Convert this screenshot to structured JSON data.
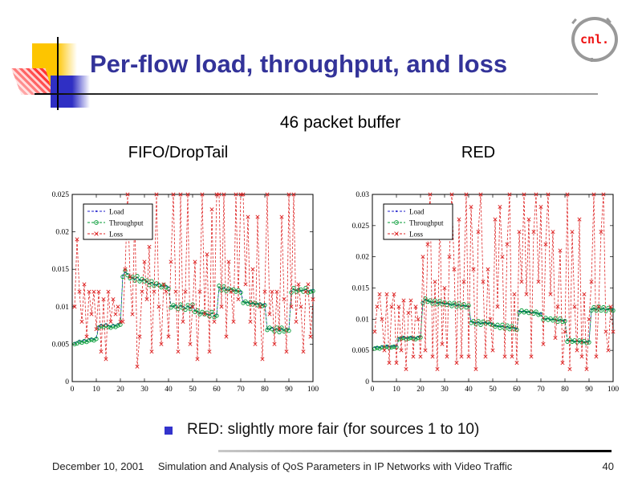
{
  "slide": {
    "title": "Per-flow load, throughput, and loss",
    "subtitle": "46 packet buffer",
    "bullet_text": "RED: slightly more fair (for sources 1 to 10)",
    "footer_date": "December 10, 2001",
    "footer_title": "Simulation and Analysis of QoS Parameters in IP Networks with Video Traffic",
    "page_number": "40",
    "logo_text": "cnl."
  },
  "colors": {
    "title": "#333399",
    "bullet_marker": "#3333cc",
    "logo_text": "#ee1111",
    "load": "#2222cc",
    "throughput": "#009933",
    "loss": "#dd2222"
  },
  "chart_data": [
    {
      "type": "line",
      "title": "FIFO/DropTail",
      "xlabel": "",
      "ylabel": "",
      "xlim": [
        0,
        100
      ],
      "ylim": [
        0,
        0.025
      ],
      "x_start": 1,
      "x_step": 1,
      "grid": false,
      "legend_position": "top-left",
      "xtick_values": [
        0,
        10,
        20,
        30,
        40,
        50,
        60,
        70,
        80,
        90,
        100
      ],
      "xtick_labels": [
        "0",
        "10",
        "20",
        "30",
        "40",
        "50",
        "60",
        "70",
        "80",
        "90",
        "100"
      ],
      "ytick_values": [
        0,
        0.005,
        0.01,
        0.015,
        0.02,
        0.025
      ],
      "ytick_labels": [
        "0",
        "0.005",
        "0.01",
        "0.015",
        "0.02",
        "0.025"
      ],
      "series": [
        {
          "name": "Load",
          "color": "#2222cc",
          "marker": "dot",
          "values": [
            0.0052,
            0.0053,
            0.0055,
            0.0054,
            0.0056,
            0.0055,
            0.0057,
            0.0058,
            0.0057,
            0.0059,
            0.0074,
            0.0076,
            0.0075,
            0.0077,
            0.0075,
            0.0074,
            0.0076,
            0.0075,
            0.0077,
            0.0078,
            0.0142,
            0.0146,
            0.0144,
            0.014,
            0.0138,
            0.0137,
            0.0139,
            0.0136,
            0.0135,
            0.0136,
            0.0133,
            0.0131,
            0.0132,
            0.013,
            0.0129,
            0.0131,
            0.0128,
            0.0127,
            0.0128,
            0.0126,
            0.0101,
            0.01,
            0.0102,
            0.0099,
            0.0101,
            0.01,
            0.0098,
            0.01,
            0.0099,
            0.0101,
            0.0095,
            0.0093,
            0.0092,
            0.0091,
            0.0092,
            0.009,
            0.0089,
            0.0091,
            0.0088,
            0.009,
            0.0126,
            0.0124,
            0.0125,
            0.0123,
            0.0122,
            0.0124,
            0.0121,
            0.0122,
            0.012,
            0.0121,
            0.0107,
            0.0105,
            0.0106,
            0.0104,
            0.0105,
            0.0103,
            0.0104,
            0.0105,
            0.0103,
            0.0104,
            0.0071,
            0.007,
            0.0072,
            0.0069,
            0.007,
            0.0068,
            0.007,
            0.0069,
            0.0071,
            0.007,
            0.0121,
            0.0123,
            0.0122,
            0.0124,
            0.0121,
            0.0122,
            0.0123,
            0.0121,
            0.0122,
            0.0123
          ]
        },
        {
          "name": "Throughput",
          "color": "#009933",
          "marker": "circle",
          "values": [
            0.005,
            0.0051,
            0.0053,
            0.0052,
            0.0054,
            0.0053,
            0.0055,
            0.0056,
            0.0055,
            0.0057,
            0.0072,
            0.0074,
            0.0073,
            0.0075,
            0.0073,
            0.0072,
            0.0074,
            0.0073,
            0.0075,
            0.0076,
            0.014,
            0.0148,
            0.0142,
            0.0138,
            0.014,
            0.0135,
            0.0141,
            0.0134,
            0.0137,
            0.0134,
            0.0135,
            0.0129,
            0.0134,
            0.0128,
            0.0131,
            0.0129,
            0.0126,
            0.0129,
            0.0126,
            0.0124,
            0.0099,
            0.0102,
            0.01,
            0.0097,
            0.0103,
            0.0098,
            0.0096,
            0.0102,
            0.0097,
            0.0103,
            0.0093,
            0.0095,
            0.009,
            0.0093,
            0.009,
            0.0092,
            0.0087,
            0.0093,
            0.0086,
            0.0088,
            0.0128,
            0.0122,
            0.0127,
            0.0121,
            0.0124,
            0.0122,
            0.0123,
            0.012,
            0.0122,
            0.0119,
            0.0105,
            0.0107,
            0.0104,
            0.0106,
            0.0103,
            0.0105,
            0.0102,
            0.0103,
            0.0101,
            0.0102,
            0.0069,
            0.0072,
            0.007,
            0.0067,
            0.0072,
            0.0066,
            0.0072,
            0.0067,
            0.0069,
            0.0068,
            0.0119,
            0.0125,
            0.012,
            0.0122,
            0.0123,
            0.012,
            0.0125,
            0.0119,
            0.012,
            0.0121
          ]
        },
        {
          "name": "Loss",
          "color": "#dd2222",
          "marker": "x",
          "values": [
            0.01,
            0.019,
            0.012,
            0.008,
            0.013,
            0.006,
            0.012,
            0.009,
            0.012,
            0.007,
            0.012,
            0.004,
            0.011,
            0.003,
            0.012,
            0.008,
            0.011,
            0.009,
            0.01,
            0.008,
            0.008,
            0.015,
            0.025,
            0.014,
            0.009,
            0.023,
            0.002,
            0.006,
            0.012,
            0.016,
            0.011,
            0.018,
            0.004,
            0.012,
            0.025,
            0.01,
            0.005,
            0.013,
            0.012,
            0.006,
            0.016,
            0.025,
            0.012,
            0.004,
            0.025,
            0.008,
            0.012,
            0.025,
            0.005,
            0.01,
            0.016,
            0.003,
            0.012,
            0.025,
            0.009,
            0.017,
            0.004,
            0.023,
            0.008,
            0.025,
            0.025,
            0.01,
            0.025,
            0.006,
            0.016,
            0.012,
            0.008,
            0.025,
            0.011,
            0.025,
            0.025,
            0.013,
            0.022,
            0.008,
            0.015,
            0.005,
            0.022,
            0.01,
            0.003,
            0.012,
            0.025,
            0.009,
            0.012,
            0.005,
            0.012,
            0.007,
            0.022,
            0.011,
            0.004,
            0.025,
            0.01,
            0.025,
            0.008,
            0.013,
            0.01,
            0.004,
            0.012,
            0.013,
            0.006,
            0.011
          ]
        }
      ]
    },
    {
      "type": "line",
      "title": "RED",
      "xlabel": "",
      "ylabel": "",
      "xlim": [
        0,
        100
      ],
      "ylim": [
        0,
        0.03
      ],
      "x_start": 1,
      "x_step": 1,
      "grid": false,
      "legend_position": "top-left",
      "xtick_values": [
        0,
        10,
        20,
        30,
        40,
        50,
        60,
        70,
        80,
        90,
        100
      ],
      "xtick_labels": [
        "0",
        "10",
        "20",
        "30",
        "40",
        "50",
        "60",
        "70",
        "80",
        "90",
        "100"
      ],
      "ytick_values": [
        0,
        0.005,
        0.01,
        0.015,
        0.02,
        0.025,
        0.03
      ],
      "ytick_labels": [
        "0",
        "0.005",
        "0.01",
        "0.015",
        "0.02",
        "0.025",
        "0.03"
      ],
      "series": [
        {
          "name": "Load",
          "color": "#2222cc",
          "marker": "dot",
          "values": [
            0.0055,
            0.0056,
            0.0055,
            0.0057,
            0.0056,
            0.0058,
            0.0056,
            0.0057,
            0.0058,
            0.0057,
            0.007,
            0.0071,
            0.0072,
            0.007,
            0.0071,
            0.0072,
            0.0071,
            0.007,
            0.0072,
            0.0073,
            0.0128,
            0.0131,
            0.013,
            0.0128,
            0.0127,
            0.0128,
            0.0126,
            0.0127,
            0.0126,
            0.0125,
            0.0125,
            0.0124,
            0.0123,
            0.0124,
            0.0122,
            0.0123,
            0.0121,
            0.0122,
            0.0121,
            0.012,
            0.0096,
            0.0095,
            0.0094,
            0.0095,
            0.0093,
            0.0094,
            0.0095,
            0.0093,
            0.0094,
            0.0093,
            0.009,
            0.0089,
            0.0088,
            0.0089,
            0.0087,
            0.0088,
            0.0086,
            0.0087,
            0.0086,
            0.0085,
            0.0113,
            0.0112,
            0.0113,
            0.0111,
            0.0112,
            0.011,
            0.0111,
            0.011,
            0.0109,
            0.011,
            0.0101,
            0.01,
            0.0101,
            0.0099,
            0.01,
            0.0099,
            0.0098,
            0.0099,
            0.0098,
            0.0099,
            0.0066,
            0.0065,
            0.0066,
            0.0064,
            0.0065,
            0.0064,
            0.0065,
            0.0063,
            0.0064,
            0.0065,
            0.0116,
            0.0117,
            0.0116,
            0.0118,
            0.0116,
            0.0117,
            0.0115,
            0.0116,
            0.0117,
            0.0116
          ]
        },
        {
          "name": "Throughput",
          "color": "#009933",
          "marker": "circle",
          "values": [
            0.0053,
            0.0054,
            0.0053,
            0.0055,
            0.0054,
            0.0056,
            0.0054,
            0.0055,
            0.0056,
            0.0055,
            0.0068,
            0.0069,
            0.007,
            0.0068,
            0.0069,
            0.007,
            0.0069,
            0.0068,
            0.007,
            0.0071,
            0.0126,
            0.0133,
            0.0128,
            0.013,
            0.0125,
            0.013,
            0.0124,
            0.0129,
            0.0124,
            0.0127,
            0.0123,
            0.0126,
            0.0121,
            0.0126,
            0.012,
            0.0125,
            0.0119,
            0.0124,
            0.0119,
            0.0122,
            0.0094,
            0.0097,
            0.0092,
            0.0097,
            0.0091,
            0.0096,
            0.0093,
            0.0095,
            0.0092,
            0.0091,
            0.0088,
            0.0091,
            0.0086,
            0.0091,
            0.0085,
            0.009,
            0.0084,
            0.0089,
            0.0084,
            0.0083,
            0.0111,
            0.0114,
            0.0111,
            0.0113,
            0.011,
            0.0112,
            0.0109,
            0.0112,
            0.0107,
            0.0108,
            0.0099,
            0.0102,
            0.0099,
            0.0101,
            0.0098,
            0.0101,
            0.0096,
            0.0101,
            0.0096,
            0.0097,
            0.0064,
            0.0067,
            0.0064,
            0.0066,
            0.0063,
            0.0066,
            0.0063,
            0.0065,
            0.0062,
            0.0063,
            0.0114,
            0.0119,
            0.0114,
            0.012,
            0.0114,
            0.0119,
            0.0113,
            0.0118,
            0.0115,
            0.0114
          ]
        },
        {
          "name": "Loss",
          "color": "#dd2222",
          "marker": "x",
          "values": [
            0.008,
            0.012,
            0.014,
            0.01,
            0.005,
            0.014,
            0.003,
            0.012,
            0.014,
            0.003,
            0.012,
            0.005,
            0.013,
            0.002,
            0.011,
            0.013,
            0.004,
            0.012,
            0.01,
            0.004,
            0.02,
            0.005,
            0.022,
            0.03,
            0.004,
            0.016,
            0.002,
            0.028,
            0.006,
            0.015,
            0.004,
            0.02,
            0.03,
            0.018,
            0.003,
            0.026,
            0.004,
            0.016,
            0.03,
            0.004,
            0.028,
            0.018,
            0.002,
            0.024,
            0.03,
            0.016,
            0.004,
            0.018,
            0.01,
            0.005,
            0.026,
            0.012,
            0.028,
            0.02,
            0.004,
            0.022,
            0.03,
            0.004,
            0.014,
            0.003,
            0.024,
            0.016,
            0.03,
            0.014,
            0.026,
            0.004,
            0.024,
            0.03,
            0.016,
            0.028,
            0.006,
            0.022,
            0.03,
            0.014,
            0.024,
            0.007,
            0.012,
            0.021,
            0.003,
            0.008,
            0.03,
            0.002,
            0.024,
            0.012,
            0.005,
            0.026,
            0.004,
            0.014,
            0.002,
            0.01,
            0.016,
            0.03,
            0.004,
            0.012,
            0.024,
            0.03,
            0.008,
            0.005,
            0.012,
            0.008
          ]
        }
      ]
    }
  ]
}
